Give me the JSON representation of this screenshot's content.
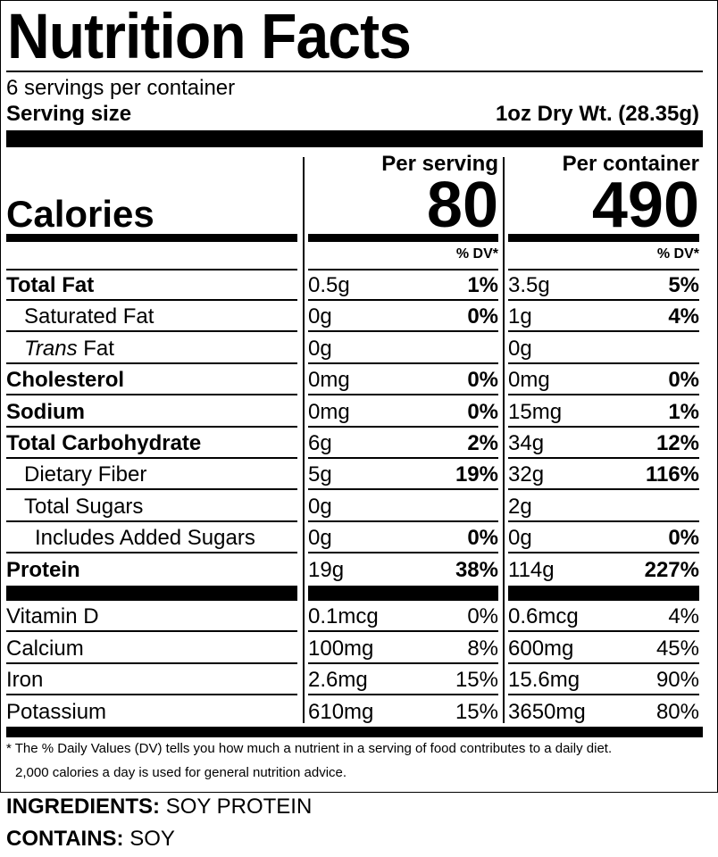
{
  "title": "Nutrition Facts",
  "servings_per_container": "6 servings per container",
  "serving_size_label": "Serving size",
  "serving_size_value": "1oz Dry Wt. (28.35g)",
  "per_serving_label": "Per serving",
  "per_container_label": "Per container",
  "calories_label": "Calories",
  "calories_per_serving": "80",
  "calories_per_container": "490",
  "dv_header": "% DV*",
  "nutrients": [
    {
      "label": "Total Fat",
      "bold": true,
      "indent": 0,
      "serving": "0.5g",
      "serving_dv": "1%",
      "container": "3.5g",
      "container_dv": "5%"
    },
    {
      "label": "Saturated Fat",
      "bold": false,
      "indent": 1,
      "serving": "0g",
      "serving_dv": "0%",
      "container": "1g",
      "container_dv": "4%"
    },
    {
      "italic_prefix": "Trans",
      "label": "Fat",
      "bold": false,
      "indent": 1,
      "serving": "0g",
      "serving_dv": "",
      "container": "0g",
      "container_dv": ""
    },
    {
      "label": "Cholesterol",
      "bold": true,
      "indent": 0,
      "serving": "0mg",
      "serving_dv": "0%",
      "container": "0mg",
      "container_dv": "0%"
    },
    {
      "label": "Sodium",
      "bold": true,
      "indent": 0,
      "serving": "0mg",
      "serving_dv": "0%",
      "container": "15mg",
      "container_dv": "1%"
    },
    {
      "label": "Total Carbohydrate",
      "bold": true,
      "indent": 0,
      "serving": "6g",
      "serving_dv": "2%",
      "container": "34g",
      "container_dv": "12%"
    },
    {
      "label": "Dietary Fiber",
      "bold": false,
      "indent": 1,
      "serving": "5g",
      "serving_dv": "19%",
      "container": "32g",
      "container_dv": "116%"
    },
    {
      "label": "Total Sugars",
      "bold": false,
      "indent": 1,
      "serving": "0g",
      "serving_dv": "",
      "container": "2g",
      "container_dv": ""
    },
    {
      "label": "Includes Added Sugars",
      "bold": false,
      "indent": 2,
      "serving": "0g",
      "serving_dv": "0%",
      "container": "0g",
      "container_dv": "0%"
    },
    {
      "label": "Protein",
      "bold": true,
      "indent": 0,
      "serving": "19g",
      "serving_dv": "38%",
      "container": "114g",
      "container_dv": "227%"
    }
  ],
  "vitamins": [
    {
      "label": "Vitamin D",
      "serving": "0.1mcg",
      "serving_dv": "0%",
      "container": "0.6mcg",
      "container_dv": "4%"
    },
    {
      "label": "Calcium",
      "serving": "100mg",
      "serving_dv": "8%",
      "container": "600mg",
      "container_dv": "45%"
    },
    {
      "label": "Iron",
      "serving": "2.6mg",
      "serving_dv": "15%",
      "container": "15.6mg",
      "container_dv": "90%"
    },
    {
      "label": "Potassium",
      "serving": "610mg",
      "serving_dv": "15%",
      "container": "3650mg",
      "container_dv": "80%"
    }
  ],
  "footnote_line1": "* The % Daily Values (DV) tells you how much a nutrient in a serving of food contributes to a daily diet.",
  "footnote_line2": "2,000 calories a day is used for general nutrition advice.",
  "ingredients_label": "INGREDIENTS:",
  "ingredients_value": "SOY PROTEIN",
  "contains_label": "CONTAINS:",
  "contains_value": "SOY"
}
